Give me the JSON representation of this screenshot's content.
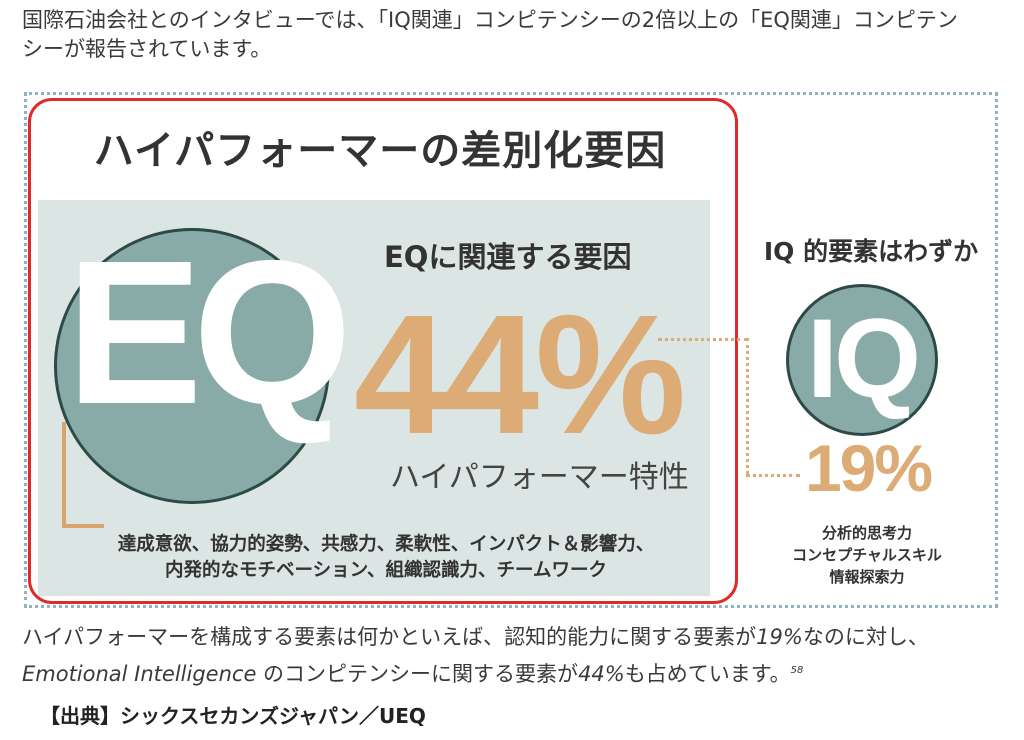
{
  "intro": {
    "line1": "国際石油会社とのインタビューでは、「IQ関連」コンピテンシーの2倍以上の「EQ関連」コンピテン",
    "line2": "シーが報告されています。"
  },
  "panel": {
    "title": "ハイパフォーマーの差別化要因",
    "eq_letters": "EQ",
    "eq_subtitle": "EQに関連する要因",
    "eq_percent": "44%",
    "eq_trait": "ハイパフォーマー特性",
    "eq_list_line1": "達成意欲、協力的姿勢、共感力、柔軟性、インパクト＆影響力、",
    "eq_list_line2": "内発的なモチベーション、組織認識力、チームワーク"
  },
  "iq": {
    "heading": "IQ 的要素はわずか",
    "letters": "IQ",
    "percent": "19%",
    "list_line1": "分析的思考力",
    "list_line2": "コンセプチャルスキル",
    "list_line3": "情報探索力"
  },
  "summary": {
    "line1_a": "ハイパフォーマーを構成する要素は何かといえば、認知的能力に関する要素が",
    "line1_b": "19%",
    "line1_c": "なのに対し、",
    "line2_a": "Emotional Intelligence",
    "line2_b": " のコンピテンシーに関する要素が",
    "line2_c": "44%",
    "line2_d": "も占めています。",
    "footnote": "58"
  },
  "source": "【出典】シックスセカンズジャパン／UEQ",
  "colors": {
    "accent_orange": "#dcab76",
    "circle_teal": "#88aba8",
    "panel_border_red": "#e12b2b",
    "eq_box_bg": "#dbe5e4",
    "dotted_frame": "#8fb3c3"
  }
}
